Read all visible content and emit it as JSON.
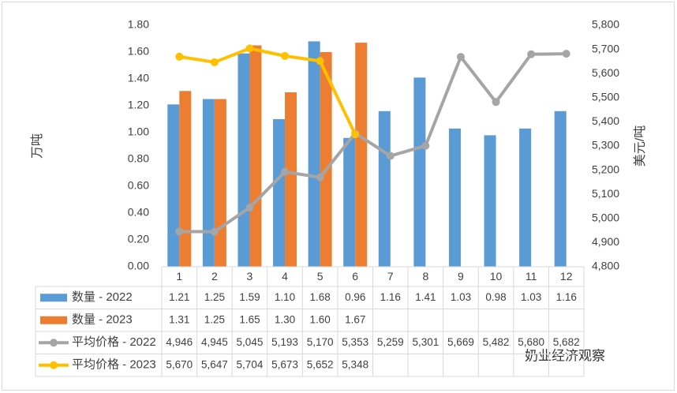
{
  "chart_data": {
    "type": "bar_line_table",
    "y_label": "万吨",
    "y2_label": "美元/吨",
    "watermark": "奶业经济观察",
    "categories": [
      "1",
      "2",
      "3",
      "4",
      "5",
      "6",
      "7",
      "8",
      "9",
      "10",
      "11",
      "12"
    ],
    "series": [
      {
        "name": "数量 - 2022",
        "type": "bar",
        "color": "#5b9bd5",
        "values": [
          1.21,
          1.25,
          1.59,
          1.1,
          1.68,
          0.96,
          1.16,
          1.41,
          1.03,
          0.98,
          1.03,
          1.16
        ],
        "value_labels": [
          "1.21",
          "1.25",
          "1.59",
          "1.10",
          "1.68",
          "0.96",
          "1.16",
          "1.41",
          "1.03",
          "0.98",
          "1.03",
          "1.16"
        ]
      },
      {
        "name": "数量 - 2023",
        "type": "bar",
        "color": "#ed7d31",
        "values": [
          1.31,
          1.25,
          1.65,
          1.3,
          1.6,
          1.67,
          null,
          null,
          null,
          null,
          null,
          null
        ],
        "value_labels": [
          "1.31",
          "1.25",
          "1.65",
          "1.30",
          "1.60",
          "1.67",
          null,
          null,
          null,
          null,
          null,
          null
        ]
      },
      {
        "name": "平均价格 - 2022",
        "type": "line",
        "axis": "y2",
        "color": "#a5a5a5",
        "values": [
          4946,
          4945,
          5045,
          5193,
          5170,
          5353,
          5259,
          5301,
          5669,
          5482,
          5680,
          5682
        ],
        "value_labels": [
          "4,946",
          "4,945",
          "5,045",
          "5,193",
          "5,170",
          "5,353",
          "5,259",
          "5,301",
          "5,669",
          "5,482",
          "5,680",
          "5,682"
        ]
      },
      {
        "name": "平均价格 - 2023",
        "type": "line",
        "axis": "y2",
        "color": "#ffc000",
        "values": [
          5670,
          5647,
          5704,
          5673,
          5652,
          5348,
          null,
          null,
          null,
          null,
          null,
          null
        ],
        "value_labels": [
          "5,670",
          "5,647",
          "5,704",
          "5,673",
          "5,652",
          "5,348",
          null,
          null,
          null,
          null,
          null,
          null
        ]
      }
    ],
    "ylim": [
      0,
      1.8
    ],
    "yticks": [
      {
        "value": 0,
        "label": "0.00"
      },
      {
        "value": 0.2,
        "label": "0.20"
      },
      {
        "value": 0.4,
        "label": "0.40"
      },
      {
        "value": 0.6,
        "label": "0.60"
      },
      {
        "value": 0.8,
        "label": "0.80"
      },
      {
        "value": 1,
        "label": "1.00"
      },
      {
        "value": 1.2,
        "label": "1.20"
      },
      {
        "value": 1.4,
        "label": "1.40"
      },
      {
        "value": 1.6,
        "label": "1.60"
      },
      {
        "value": 1.8,
        "label": "1.80"
      }
    ],
    "y2lim": [
      4800,
      5800
    ],
    "y2ticks": [
      {
        "value": 4800,
        "label": "4,800"
      },
      {
        "value": 4900,
        "label": "4,900"
      },
      {
        "value": 5000,
        "label": "5,000"
      },
      {
        "value": 5100,
        "label": "5,100"
      },
      {
        "value": 5200,
        "label": "5,200"
      },
      {
        "value": 5300,
        "label": "5,300"
      },
      {
        "value": 5400,
        "label": "5,400"
      },
      {
        "value": 5500,
        "label": "5,500"
      },
      {
        "value": 5600,
        "label": "5,600"
      },
      {
        "value": 5700,
        "label": "5,700"
      },
      {
        "value": 5800,
        "label": "5,800"
      }
    ]
  }
}
